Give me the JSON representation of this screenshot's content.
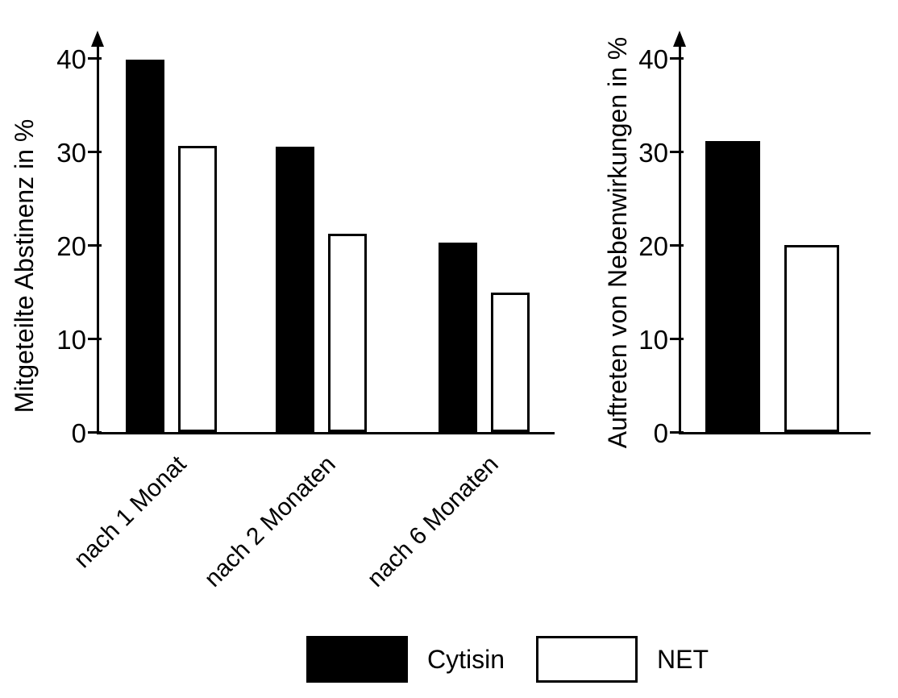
{
  "colors": {
    "cytisin_fill": "#000000",
    "net_fill": "#ffffff",
    "axis": "#000000",
    "background": "#ffffff"
  },
  "chart_data": [
    {
      "id": "abstinence",
      "type": "bar",
      "title": "",
      "ylabel": "Mitgeteilte Abstinenz in %",
      "xlabel": "",
      "categories": [
        "nach 1 Monat",
        "nach 2 Monaten",
        "nach 6 Monaten"
      ],
      "series": [
        {
          "name": "Cytisin",
          "style": "filled",
          "values": [
            39.8,
            30.5,
            20.3
          ]
        },
        {
          "name": "NET",
          "style": "hollow",
          "values": [
            30.6,
            21.2,
            14.9
          ]
        }
      ],
      "ylim": [
        0,
        40
      ],
      "yticks": [
        0,
        10,
        20,
        30,
        40
      ],
      "grid": false,
      "legend_position": "bottom"
    },
    {
      "id": "side-effects",
      "type": "bar",
      "title": "",
      "ylabel": "Auftreten von Nebenwirkungen in %",
      "xlabel": "",
      "categories": [
        ""
      ],
      "series": [
        {
          "name": "Cytisin",
          "style": "filled",
          "values": [
            31.1
          ]
        },
        {
          "name": "NET",
          "style": "hollow",
          "values": [
            20.0
          ]
        }
      ],
      "ylim": [
        0,
        40
      ],
      "yticks": [
        0,
        10,
        20,
        30,
        40
      ],
      "grid": false,
      "legend_position": "bottom"
    }
  ],
  "legend": {
    "items": [
      {
        "label": "Cytisin",
        "style": "filled"
      },
      {
        "label": "NET",
        "style": "hollow"
      }
    ]
  }
}
